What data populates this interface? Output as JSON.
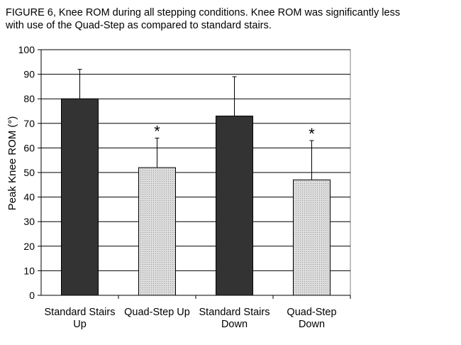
{
  "caption": {
    "line1": "FIGURE 6,  Knee ROM during all stepping conditions.  Knee ROM was significantly less",
    "line2": "with use of the Quad-Step as compared to standard stairs."
  },
  "chart_data": {
    "type": "bar",
    "title": "",
    "xlabel": "",
    "ylabel": "Peak Knee ROM (°)",
    "ylim": [
      0,
      100
    ],
    "yticks": [
      0,
      10,
      20,
      30,
      40,
      50,
      60,
      70,
      80,
      90,
      100
    ],
    "grid": "horizontal",
    "categories": [
      [
        "Standard Stairs",
        "Up"
      ],
      [
        "Quad-Step Up"
      ],
      [
        "Standard Stairs",
        "Down"
      ],
      [
        "Quad-Step",
        "Down"
      ]
    ],
    "values": [
      80,
      52,
      73,
      47
    ],
    "error_upper": [
      92,
      64,
      89,
      63
    ],
    "significance": [
      "",
      "*",
      "",
      "*"
    ],
    "bar_styles": [
      "dark",
      "light-dotted",
      "dark",
      "light-dotted"
    ],
    "colors": {
      "dark": "#333333",
      "light": "#d2d2d2",
      "grid": "#000000",
      "plot_bg": "#ffffff"
    }
  }
}
